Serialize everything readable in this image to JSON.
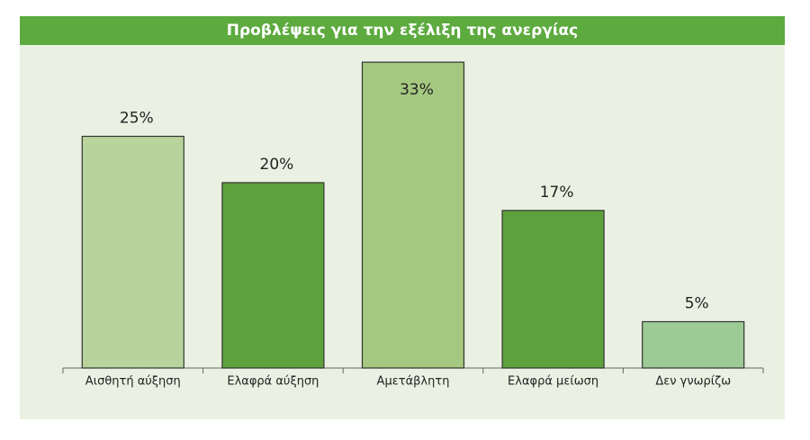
{
  "chart_data": {
    "type": "bar",
    "title": "Προβλέψεις για την εξέλιξη της ανεργίας",
    "categories": [
      "Αισθητή αύξηση",
      "Ελαφρά αύξηση",
      "Αμετάβλητη",
      "Ελαφρά μείωση",
      "Δεν γνωρίζω"
    ],
    "values": [
      25,
      20,
      33,
      17,
      5
    ],
    "value_labels": [
      "25%",
      "20%",
      "33%",
      "17%",
      "5%"
    ],
    "colors": [
      "#b8d49c",
      "#5da23c",
      "#a5c880",
      "#5da23c",
      "#9dcb95"
    ]
  }
}
